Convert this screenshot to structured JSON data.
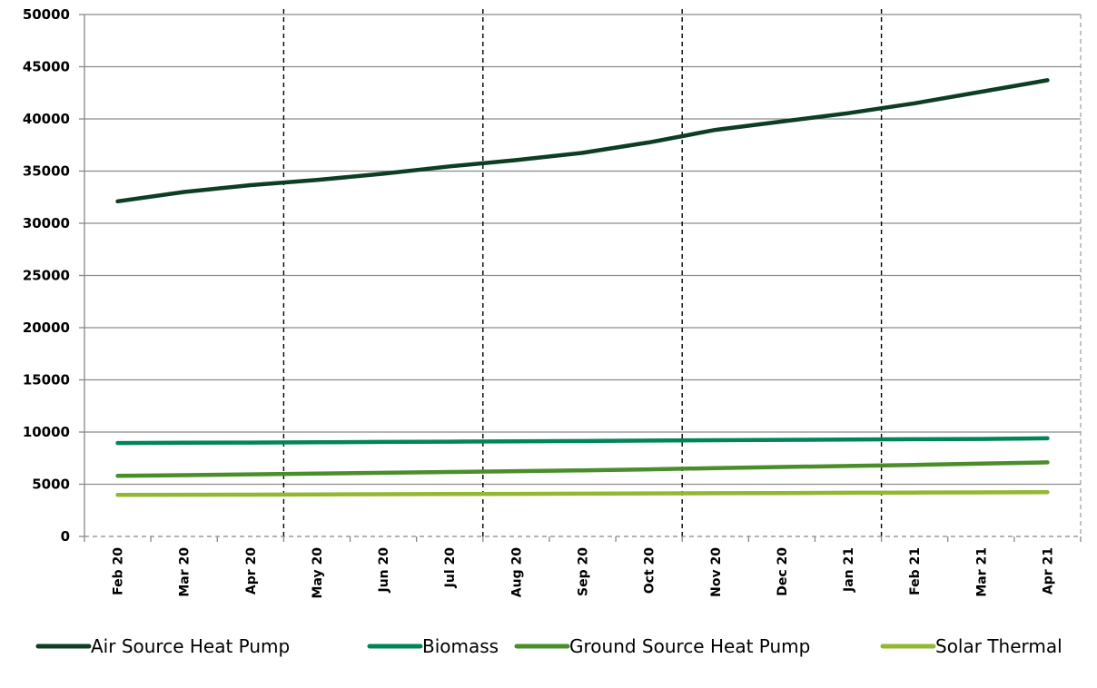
{
  "chart_data": {
    "type": "line",
    "title": "",
    "xlabel": "",
    "ylabel": "",
    "ylim": [
      0,
      50000
    ],
    "y_ticks": [
      0,
      5000,
      10000,
      15000,
      20000,
      25000,
      30000,
      35000,
      40000,
      45000,
      50000
    ],
    "y_tick_labels": [
      "0",
      "5000",
      "10000",
      "15000",
      "20000",
      "25000",
      "30000",
      "35000",
      "40000",
      "45000",
      "50000"
    ],
    "categories": [
      "Feb 20",
      "Mar 20",
      "Apr 20",
      "May 20",
      "Jun 20",
      "Jul 20",
      "Aug 20",
      "Sep 20",
      "Oct 20",
      "Nov 20",
      "Dec 20",
      "Jan 21",
      "Feb 21",
      "Mar 21",
      "Apr 21"
    ],
    "grid": true,
    "legend_position": "bottom",
    "quarter_dividers_after": [
      "Apr 20",
      "Jul 20",
      "Oct 20",
      "Jan 21"
    ],
    "series": [
      {
        "name": "Air Source Heat Pump",
        "color": "#0d3d23",
        "values": [
          32100,
          33000,
          33650,
          34150,
          34750,
          35450,
          36050,
          36750,
          37750,
          38950,
          39750,
          40550,
          41500,
          42600,
          43700
        ]
      },
      {
        "name": "Biomass",
        "color": "#00855a",
        "values": [
          8950,
          8970,
          8990,
          9020,
          9050,
          9080,
          9110,
          9140,
          9180,
          9220,
          9250,
          9280,
          9310,
          9340,
          9400
        ]
      },
      {
        "name": "Ground Source Heat Pump",
        "color": "#4a8e2b",
        "values": [
          5800,
          5870,
          5950,
          6020,
          6100,
          6170,
          6250,
          6330,
          6430,
          6550,
          6650,
          6750,
          6850,
          6980,
          7100
        ]
      },
      {
        "name": "Solar Thermal",
        "color": "#92b831",
        "values": [
          3980,
          3990,
          4000,
          4020,
          4040,
          4060,
          4080,
          4100,
          4120,
          4140,
          4160,
          4180,
          4200,
          4220,
          4240
        ]
      }
    ]
  }
}
